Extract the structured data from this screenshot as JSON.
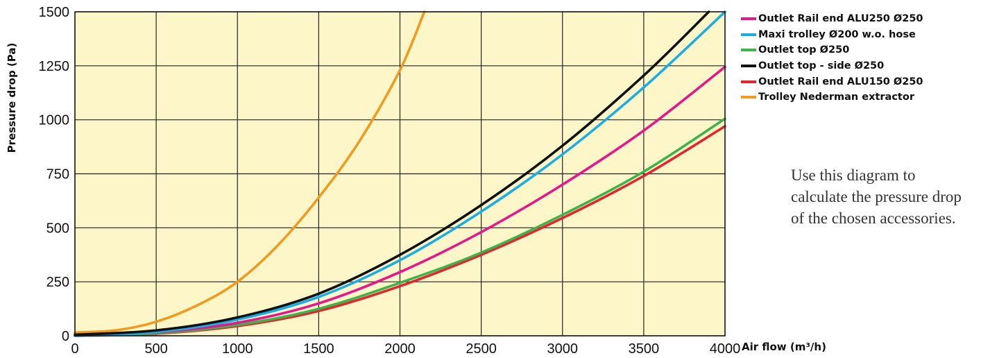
{
  "chart_data": {
    "type": "line",
    "title": "",
    "xlabel": "Air flow (m³/h)",
    "ylabel": "Pressure drop (Pa)",
    "xlim": [
      0,
      4000
    ],
    "ylim": [
      0,
      1500
    ],
    "x_ticks": [
      "0",
      "500",
      "1000",
      "1500",
      "2000",
      "2500",
      "3000",
      "3500",
      "4000"
    ],
    "y_ticks": [
      "0",
      "250",
      "500",
      "750",
      "1000",
      "1250",
      "1500"
    ],
    "grid": true,
    "plot_background": "#fdf6c8",
    "legend_position": "right",
    "series": [
      {
        "name": "Outlet Rail end ALU250 Ø250",
        "color": "#e5178c",
        "x": [
          0,
          500,
          1000,
          1500,
          2000,
          2500,
          3000,
          3500,
          4000
        ],
        "y": [
          0,
          16,
          60,
          150,
          295,
          480,
          700,
          950,
          1245
        ]
      },
      {
        "name": "Maxi trolley Ø200 w.o. hose",
        "color": "#1aaee5",
        "x": [
          0,
          500,
          1000,
          1500,
          2000,
          2500,
          3000,
          3500,
          4000
        ],
        "y": [
          0,
          18,
          75,
          180,
          350,
          575,
          840,
          1150,
          1500
        ]
      },
      {
        "name": "Outlet top Ø250",
        "color": "#3cb44a",
        "x": [
          0,
          500,
          1000,
          1500,
          2000,
          2500,
          3000,
          3500,
          4000
        ],
        "y": [
          0,
          12,
          50,
          125,
          245,
          385,
          560,
          760,
          1005
        ]
      },
      {
        "name": "Outlet top - side Ø250",
        "color": "#111111",
        "x": [
          0,
          500,
          1000,
          1500,
          2000,
          2500,
          3000,
          3500,
          3900
        ],
        "y": [
          5,
          25,
          85,
          195,
          375,
          605,
          880,
          1205,
          1500
        ]
      },
      {
        "name": "Outlet Rail end ALU150 Ø250",
        "color": "#e3262d",
        "x": [
          0,
          500,
          1000,
          1500,
          2000,
          2500,
          3000,
          3500,
          4000
        ],
        "y": [
          0,
          10,
          45,
          115,
          230,
          375,
          545,
          740,
          970
        ]
      },
      {
        "name": "Trolley Nederman extractor",
        "color": "#f29a1f",
        "x": [
          0,
          250,
          500,
          750,
          1000,
          1250,
          1500,
          1750,
          2000,
          2150
        ],
        "y": [
          15,
          25,
          65,
          140,
          250,
          420,
          640,
          900,
          1230,
          1500
        ]
      }
    ]
  },
  "note": "Use this diagram to calculate the pressure drop of the chosen accessories."
}
